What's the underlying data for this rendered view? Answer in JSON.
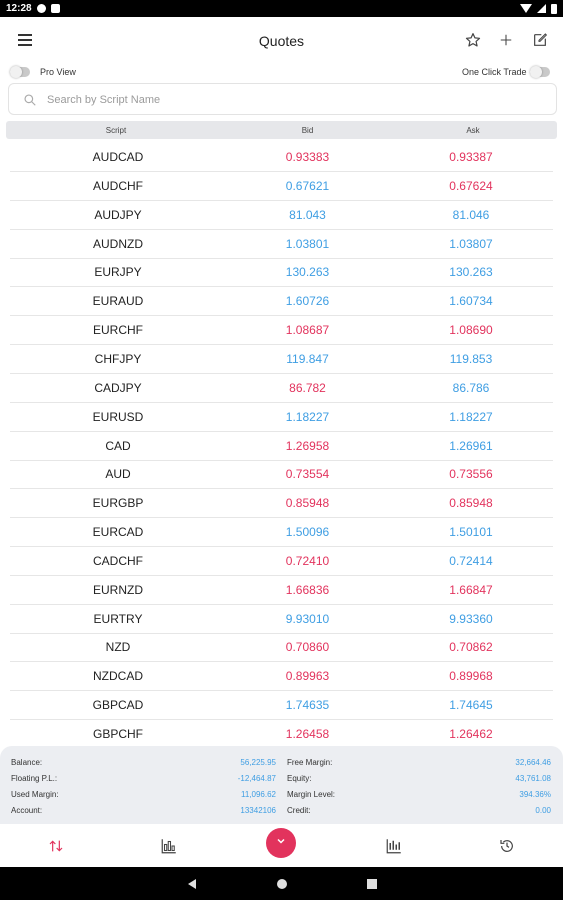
{
  "status_bar": {
    "time": "12:28"
  },
  "header": {
    "title": "Quotes"
  },
  "toggles": {
    "pro_view": "Pro View",
    "one_click_trade": "One Click Trade"
  },
  "search": {
    "placeholder": "Search by Script Name",
    "value": ""
  },
  "table": {
    "columns": [
      "Script",
      "Bid",
      "Ask"
    ],
    "rows": [
      {
        "symbol": "AUDCAD",
        "bid": "0.93383",
        "ask": "0.93387",
        "bid_color": "red",
        "ask_color": "red"
      },
      {
        "symbol": "AUDCHF",
        "bid": "0.67621",
        "ask": "0.67624",
        "bid_color": "blue",
        "ask_color": "red"
      },
      {
        "symbol": "AUDJPY",
        "bid": "81.043",
        "ask": "81.046",
        "bid_color": "blue",
        "ask_color": "blue"
      },
      {
        "symbol": "AUDNZD",
        "bid": "1.03801",
        "ask": "1.03807",
        "bid_color": "blue",
        "ask_color": "blue"
      },
      {
        "symbol": "EURJPY",
        "bid": "130.263",
        "ask": "130.263",
        "bid_color": "blue",
        "ask_color": "blue"
      },
      {
        "symbol": "EURAUD",
        "bid": "1.60726",
        "ask": "1.60734",
        "bid_color": "blue",
        "ask_color": "blue"
      },
      {
        "symbol": "EURCHF",
        "bid": "1.08687",
        "ask": "1.08690",
        "bid_color": "red",
        "ask_color": "red"
      },
      {
        "symbol": "CHFJPY",
        "bid": "119.847",
        "ask": "119.853",
        "bid_color": "blue",
        "ask_color": "blue"
      },
      {
        "symbol": "CADJPY",
        "bid": "86.782",
        "ask": "86.786",
        "bid_color": "red",
        "ask_color": "blue"
      },
      {
        "symbol": "EURUSD",
        "bid": "1.18227",
        "ask": "1.18227",
        "bid_color": "blue",
        "ask_color": "blue"
      },
      {
        "symbol": "CAD",
        "bid": "1.26958",
        "ask": "1.26961",
        "bid_color": "red",
        "ask_color": "blue"
      },
      {
        "symbol": "AUD",
        "bid": "0.73554",
        "ask": "0.73556",
        "bid_color": "red",
        "ask_color": "red"
      },
      {
        "symbol": "EURGBP",
        "bid": "0.85948",
        "ask": "0.85948",
        "bid_color": "red",
        "ask_color": "red"
      },
      {
        "symbol": "EURCAD",
        "bid": "1.50096",
        "ask": "1.50101",
        "bid_color": "blue",
        "ask_color": "blue"
      },
      {
        "symbol": "CADCHF",
        "bid": "0.72410",
        "ask": "0.72414",
        "bid_color": "red",
        "ask_color": "blue"
      },
      {
        "symbol": "EURNZD",
        "bid": "1.66836",
        "ask": "1.66847",
        "bid_color": "red",
        "ask_color": "red"
      },
      {
        "symbol": "EURTRY",
        "bid": "9.93010",
        "ask": "9.93360",
        "bid_color": "blue",
        "ask_color": "blue"
      },
      {
        "symbol": "NZD",
        "bid": "0.70860",
        "ask": "0.70862",
        "bid_color": "red",
        "ask_color": "red"
      },
      {
        "symbol": "NZDCAD",
        "bid": "0.89963",
        "ask": "0.89968",
        "bid_color": "red",
        "ask_color": "red"
      },
      {
        "symbol": "GBPCAD",
        "bid": "1.74635",
        "ask": "1.74645",
        "bid_color": "blue",
        "ask_color": "blue"
      },
      {
        "symbol": "GBPCHF",
        "bid": "1.26458",
        "ask": "1.26462",
        "bid_color": "red",
        "ask_color": "red"
      }
    ]
  },
  "account_summary": {
    "balance_label": "Balance:",
    "balance": "56,225.95",
    "floating_pl_label": "Floating P.L.:",
    "floating_pl": "-12,464.87",
    "used_margin_label": "Used Margin:",
    "used_margin": "11,096.62",
    "account_label": "Account:",
    "account": "13342106",
    "free_margin_label": "Free Margin:",
    "free_margin": "32,664.46",
    "equity_label": "Equity:",
    "equity": "43,761.08",
    "margin_level_label": "Margin Level:",
    "margin_level": "394.36%",
    "credit_label": "Credit:",
    "credit": "0.00"
  },
  "colors": {
    "red": "#e2335d",
    "blue": "#3f9ee3",
    "accent": "#e2335d"
  },
  "bottom_nav": {
    "icons": [
      "quotes-arrows-icon",
      "chart-bars-icon",
      "trade-fab-chevron-icon",
      "positions-chart-icon",
      "history-clock-icon"
    ]
  }
}
